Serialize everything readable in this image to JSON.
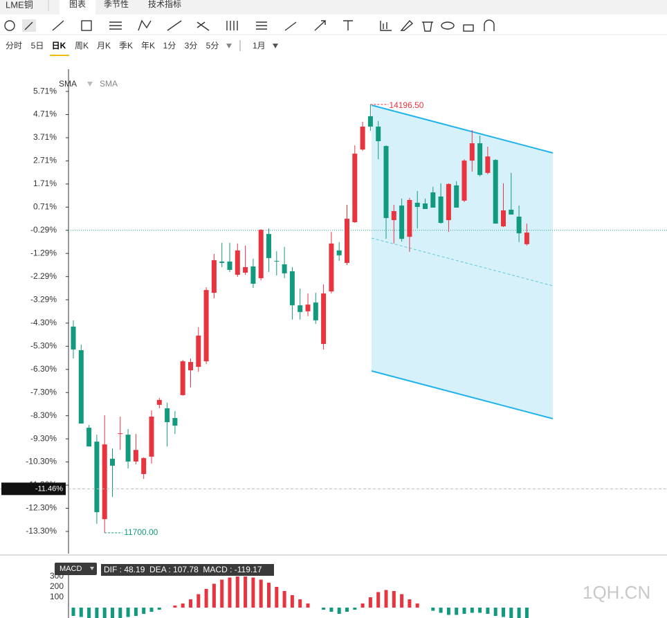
{
  "header": {
    "title": "LME铜",
    "tabs": [
      "图表",
      "季节性",
      "技术指标"
    ]
  },
  "periods": [
    "分时",
    "5日",
    "日K",
    "周K",
    "月K",
    "季K",
    "年K",
    "1分",
    "3分",
    "5分"
  ],
  "range": "1月",
  "watermark": "1QH.CN",
  "chart_data": [
    {
      "type": "candlestick",
      "indicators": [
        "SMA",
        "SMA"
      ],
      "up_color": "#e8343f",
      "down_color": "#119a7d",
      "open": [
        -4.45,
        -5.47,
        -8.82,
        -9.42,
        -12.77,
        -10.16,
        -9.09,
        -9.12,
        -10.28,
        -10.82,
        -10.07,
        -7.83,
        -7.98,
        -8.4,
        -7.41,
        -6.34,
        -6.19,
        -5.95,
        -2.99,
        -1.64,
        -1.64,
        -2.21,
        -2.12,
        -1.85,
        -2.36,
        -0.45,
        -1.61,
        -1.76,
        -2.06,
        -3.53,
        -3.79,
        -3.41,
        -5.2,
        -2.93,
        -1.16,
        -1.7,
        0.06,
        3.2,
        4.64,
        4.19,
        3.35,
        0.15,
        0.78,
        -0.57,
        0.9,
        0.87,
        1.35,
        1.17,
        0.15,
        1.65,
        0.99,
        2.72,
        3.47,
        2.19,
        2.75,
        -0.12,
        0.6,
        0.3,
        -0.89
      ],
      "high": [
        -4.18,
        -5.23,
        -8.7,
        -9.12,
        -8.28,
        -9.72,
        -8.34,
        -8.88,
        -9.09,
        -10.1,
        -8.07,
        -7.53,
        -7.74,
        -8.1,
        -5.89,
        -5.83,
        -4.48,
        -2.75,
        -1.31,
        -0.83,
        -0.83,
        -0.86,
        -0.95,
        -1.52,
        -0.24,
        -0.21,
        -1.19,
        -1.01,
        -1.88,
        -2.81,
        -3.02,
        -2.99,
        -2.63,
        -0.36,
        -0.8,
        0.81,
        3.38,
        4.4,
        5.15,
        4.43,
        3.38,
        0.81,
        1.08,
        1.11,
        1.41,
        1.08,
        1.59,
        1.74,
        1.74,
        1.83,
        2.78,
        4.04,
        3.8,
        3.32,
        2.78,
        1.74,
        2.19,
        0.78,
        0.0
      ],
      "low": [
        -5.83,
        -8.64,
        -9.63,
        -12.97,
        -13.36,
        -11.81,
        -9.78,
        -10.58,
        -10.4,
        -11.03,
        -10.37,
        -7.98,
        -9.63,
        -9.09,
        -7.44,
        -7.08,
        -6.4,
        -6.07,
        -3.23,
        -1.88,
        -2.09,
        -2.3,
        -2.21,
        -2.78,
        -2.45,
        -2.09,
        -2.24,
        -2.36,
        -4.15,
        -4.15,
        -4.0,
        -4.33,
        -5.44,
        -3.02,
        -1.61,
        -1.79,
        0.03,
        3.14,
        4.01,
        2.78,
        -0.66,
        -0.86,
        -0.78,
        -1.22,
        -0.21,
        0.63,
        0.69,
        0.0,
        -0.36,
        0.69,
        0.93,
        2.25,
        2.04,
        2.13,
        0.0,
        -0.15,
        0.39,
        -0.8,
        -0.95
      ],
      "close": [
        -5.44,
        -8.64,
        -9.63,
        -12.47,
        -9.54,
        -10.46,
        -9.06,
        -10.28,
        -9.78,
        -10.13,
        -8.34,
        -7.62,
        -8.58,
        -8.73,
        -5.95,
        -5.98,
        -4.84,
        -2.87,
        -1.58,
        -1.7,
        -2.0,
        -1.16,
        -1.88,
        -2.6,
        -0.27,
        -1.49,
        -1.64,
        -2.15,
        -3.53,
        -3.82,
        -3.5,
        -4.18,
        -3.02,
        -0.86,
        -1.37,
        0.21,
        3.02,
        4.19,
        4.19,
        3.56,
        0.24,
        0.54,
        -0.66,
        1.02,
        0.72,
        0.63,
        0.69,
        0.03,
        1.71,
        0.69,
        2.72,
        3.47,
        2.1,
        2.9,
        0.0,
        0.57,
        0.39,
        -0.42,
        -0.39
      ],
      "ylim": [
        -14.26,
        6.67
      ],
      "yticks": [
        {
          "value": 5.71,
          "label": "5.71%"
        },
        {
          "value": 4.71,
          "label": "4.71%"
        },
        {
          "value": 3.71,
          "label": "3.71%"
        },
        {
          "value": 2.71,
          "label": "2.71%"
        },
        {
          "value": 1.71,
          "label": "1.71%"
        },
        {
          "value": 0.71,
          "label": "0.71%"
        },
        {
          "value": -0.29,
          "label": "-0.29%"
        },
        {
          "value": -1.29,
          "label": "-1.29%"
        },
        {
          "value": -2.29,
          "label": "-2.29%"
        },
        {
          "value": -3.29,
          "label": "-3.29%"
        },
        {
          "value": -4.3,
          "label": "-4.30%"
        },
        {
          "value": -5.3,
          "label": "-5.30%"
        },
        {
          "value": -6.3,
          "label": "-6.30%"
        },
        {
          "value": -7.3,
          "label": "-7.30%"
        },
        {
          "value": -8.3,
          "label": "-8.30%"
        },
        {
          "value": -9.3,
          "label": "-9.30%"
        },
        {
          "value": -10.3,
          "label": "-10.30%"
        },
        {
          "value": -11.3,
          "label": "-11.30%"
        },
        {
          "value": -12.3,
          "label": "-12.30%"
        },
        {
          "value": -13.3,
          "label": "-13.30%"
        }
      ],
      "last_line": -0.29,
      "crosshair": {
        "value": -11.46,
        "label": "-11.46%"
      },
      "max_label": "14196.50",
      "min_label": "11700.00"
    },
    {
      "type": "bar",
      "title": "MACD",
      "legend": "DIF : 48.19  DEA : 107.78  MACD : -119.17",
      "up_color": "#e8343f",
      "down_color": "#119a7d",
      "values": [
        -80,
        -90,
        -100,
        -110,
        -120,
        -110,
        -100,
        -90,
        -80,
        -60,
        -40,
        -20,
        0,
        20,
        40,
        80,
        130,
        180,
        230,
        270,
        290,
        300,
        300,
        290,
        270,
        240,
        200,
        160,
        120,
        80,
        40,
        0,
        -20,
        -40,
        -60,
        -40,
        -20,
        40,
        100,
        150,
        170,
        160,
        130,
        80,
        40,
        0,
        -30,
        -50,
        -70,
        -70,
        -60,
        -50,
        -50,
        -60,
        -80,
        -90,
        -100,
        -110,
        -119.17
      ],
      "ylim": [
        -100,
        467
      ],
      "yticks": [
        300,
        200,
        100
      ]
    }
  ]
}
